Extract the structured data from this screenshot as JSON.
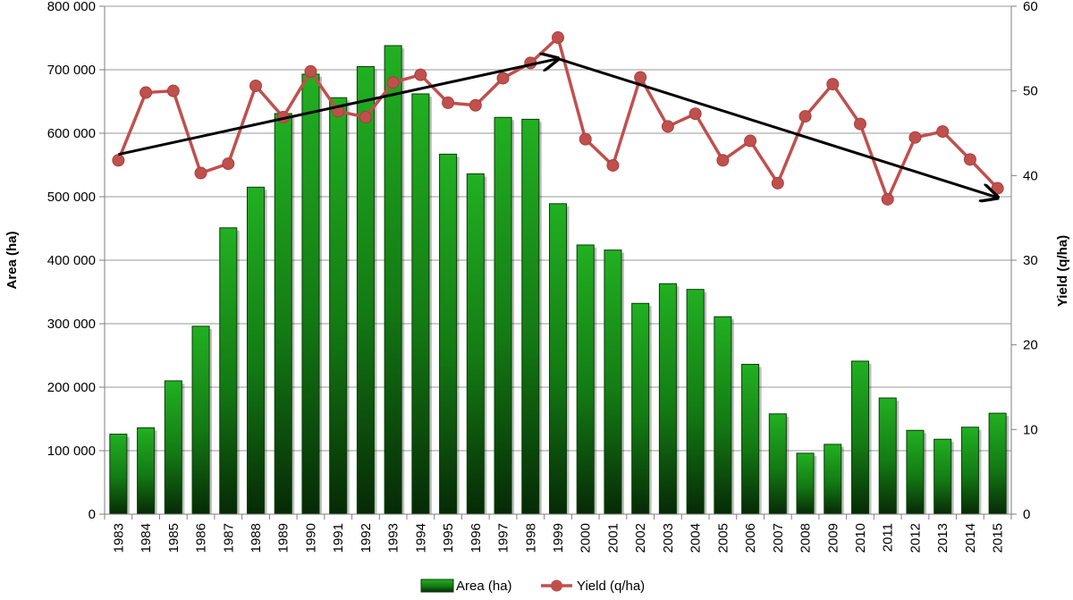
{
  "chart_data": {
    "type": "bar+line",
    "title": "",
    "xlabel": "",
    "ylabel_left": "Area (ha)",
    "ylabel_right": "Yield (q/ha)",
    "ylim_left": [
      0,
      800000
    ],
    "ylim_right": [
      0,
      60
    ],
    "yticks_left": [
      "0",
      "100 000",
      "200 000",
      "300 000",
      "400 000",
      "500 000",
      "600 000",
      "700 000",
      "800 000"
    ],
    "yticks_right": [
      "0",
      "10",
      "20",
      "30",
      "40",
      "50",
      "60"
    ],
    "grid": "horizontal",
    "legend_position": "bottom",
    "categories": [
      "1983",
      "1984",
      "1985",
      "1986",
      "1987",
      "1988",
      "1989",
      "1990",
      "1991",
      "1992",
      "1993",
      "1994",
      "1995",
      "1996",
      "1997",
      "1998",
      "1999",
      "2000",
      "2001",
      "2002",
      "2003",
      "2004",
      "2005",
      "2006",
      "2007",
      "2008",
      "2009",
      "2010",
      "2011",
      "2012",
      "2013",
      "2014",
      "2015"
    ],
    "series": [
      {
        "name": "Area (ha)",
        "type": "bar",
        "axis": "left",
        "color": "#1e9e1e",
        "values": [
          126000,
          136000,
          210000,
          296000,
          451000,
          515000,
          631000,
          693000,
          656000,
          705000,
          738000,
          662000,
          567000,
          536000,
          625000,
          622000,
          489000,
          424000,
          416000,
          332000,
          363000,
          354000,
          311000,
          236000,
          158000,
          96000,
          110000,
          241000,
          183000,
          132000,
          118000,
          137000,
          159000
        ]
      },
      {
        "name": "Yield (q/ha)",
        "type": "line",
        "axis": "right",
        "color": "#c0504d",
        "values": [
          41.8,
          49.8,
          50.0,
          40.3,
          41.4,
          50.6,
          46.9,
          52.3,
          47.6,
          46.9,
          51.0,
          51.9,
          48.6,
          48.3,
          51.5,
          53.3,
          56.3,
          44.3,
          41.2,
          51.6,
          45.8,
          47.3,
          41.8,
          44.1,
          39.1,
          47.0,
          50.8,
          46.1,
          37.2,
          44.5,
          45.2,
          41.9,
          38.5
        ]
      }
    ],
    "annotations": [
      {
        "type": "trend-arrow",
        "from": [
          "1983",
          42.5
        ],
        "to": [
          "1999",
          53.8
        ]
      },
      {
        "type": "trend-arrow",
        "from": [
          "1999",
          53.8
        ],
        "to": [
          "2015",
          37.4
        ]
      }
    ]
  }
}
